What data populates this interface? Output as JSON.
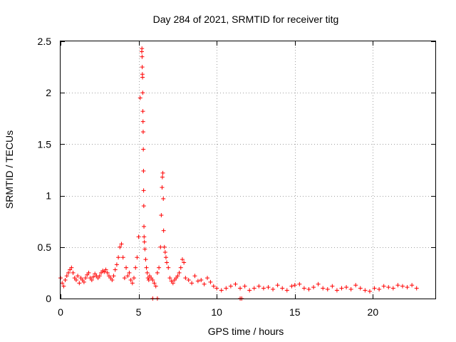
{
  "chart_data": {
    "type": "scatter",
    "title": "Day 284 of 2021, SRMTID for receiver titg",
    "xlabel": "GPS time / hours",
    "ylabel": "SRMTID / TECUs",
    "xlim": [
      0,
      24
    ],
    "ylim": [
      0,
      2.5
    ],
    "x_ticks": [
      0,
      5,
      10,
      15,
      20
    ],
    "x_tick_labels": [
      "0",
      "5",
      "10",
      "15",
      "20"
    ],
    "y_ticks": [
      0,
      0.5,
      1,
      1.5,
      2,
      2.5
    ],
    "y_tick_labels": [
      "0",
      "0.5",
      "1",
      "1.5",
      "2",
      "2.5"
    ],
    "grid": true,
    "marker": "+",
    "color": "#ff0000",
    "series": [
      {
        "name": "SRMTID",
        "x": [
          0.0,
          0.1,
          0.2,
          0.3,
          0.4,
          0.5,
          0.6,
          0.7,
          0.8,
          0.9,
          1.0,
          1.1,
          1.2,
          1.3,
          1.4,
          1.5,
          1.6,
          1.7,
          1.8,
          1.9,
          2.0,
          2.1,
          2.2,
          2.3,
          2.4,
          2.5,
          2.6,
          2.7,
          2.8,
          2.9,
          3.0,
          3.1,
          3.2,
          3.3,
          3.4,
          3.5,
          3.6,
          3.7,
          3.8,
          3.9,
          4.0,
          4.1,
          4.2,
          4.3,
          4.4,
          4.5,
          4.6,
          4.7,
          4.8,
          4.9,
          5.0,
          5.1,
          5.2,
          5.21,
          5.22,
          5.23,
          5.24,
          5.25,
          5.26,
          5.27,
          5.28,
          5.29,
          5.3,
          5.31,
          5.32,
          5.33,
          5.34,
          5.35,
          5.37,
          5.4,
          5.45,
          5.5,
          5.55,
          5.6,
          5.65,
          5.7,
          5.8,
          5.9,
          6.0,
          6.1,
          6.2,
          6.3,
          6.4,
          6.45,
          6.5,
          6.52,
          6.55,
          6.58,
          6.6,
          6.65,
          6.7,
          6.75,
          6.8,
          6.9,
          7.0,
          7.1,
          7.2,
          7.3,
          7.4,
          7.5,
          7.6,
          7.7,
          7.8,
          7.9,
          8.0,
          8.2,
          8.4,
          8.6,
          8.8,
          9.0,
          9.2,
          9.4,
          9.6,
          9.8,
          10.0,
          10.3,
          10.6,
          10.9,
          11.2,
          11.5,
          11.8,
          12.1,
          12.4,
          12.7,
          13.0,
          13.3,
          13.6,
          13.9,
          14.2,
          14.5,
          14.8,
          15.0,
          15.3,
          15.6,
          15.9,
          16.2,
          16.5,
          16.8,
          17.1,
          17.4,
          17.7,
          18.0,
          18.3,
          18.6,
          18.9,
          19.2,
          19.5,
          19.8,
          20.1,
          20.4,
          20.7,
          21.0,
          21.3,
          21.6,
          21.9,
          22.2,
          22.5,
          22.8,
          5.9,
          6.2,
          11.5,
          11.6
        ],
        "y": [
          0.2,
          0.15,
          0.12,
          0.18,
          0.22,
          0.25,
          0.28,
          0.3,
          0.25,
          0.2,
          0.18,
          0.22,
          0.15,
          0.2,
          0.18,
          0.16,
          0.2,
          0.23,
          0.25,
          0.2,
          0.18,
          0.21,
          0.24,
          0.22,
          0.2,
          0.22,
          0.25,
          0.27,
          0.26,
          0.28,
          0.25,
          0.22,
          0.2,
          0.18,
          0.22,
          0.28,
          0.33,
          0.4,
          0.5,
          0.53,
          0.4,
          0.2,
          0.3,
          0.22,
          0.25,
          0.18,
          0.15,
          0.2,
          0.3,
          0.4,
          0.6,
          1.95,
          2.4,
          2.43,
          2.35,
          2.25,
          2.18,
          2.15,
          2.0,
          1.82,
          1.72,
          1.62,
          1.45,
          1.24,
          1.05,
          0.9,
          0.7,
          0.6,
          0.55,
          0.48,
          0.38,
          0.3,
          0.25,
          0.2,
          0.18,
          0.22,
          0.2,
          0.18,
          0.15,
          0.12,
          0.25,
          0.3,
          0.5,
          0.81,
          1.08,
          1.18,
          1.22,
          0.97,
          0.66,
          0.5,
          0.45,
          0.4,
          0.35,
          0.3,
          0.2,
          0.17,
          0.15,
          0.18,
          0.2,
          0.22,
          0.25,
          0.3,
          0.38,
          0.35,
          0.2,
          0.18,
          0.15,
          0.22,
          0.17,
          0.18,
          0.14,
          0.2,
          0.16,
          0.12,
          0.1,
          0.08,
          0.1,
          0.12,
          0.14,
          0.1,
          0.12,
          0.08,
          0.1,
          0.12,
          0.1,
          0.11,
          0.09,
          0.13,
          0.1,
          0.08,
          0.12,
          0.13,
          0.14,
          0.1,
          0.09,
          0.11,
          0.14,
          0.1,
          0.09,
          0.12,
          0.08,
          0.1,
          0.11,
          0.09,
          0.13,
          0.1,
          0.08,
          0.07,
          0.1,
          0.09,
          0.12,
          0.11,
          0.1,
          0.13,
          0.12,
          0.11,
          0.13,
          0.1,
          0.0,
          0.0,
          0.0,
          0.0
        ]
      }
    ]
  }
}
